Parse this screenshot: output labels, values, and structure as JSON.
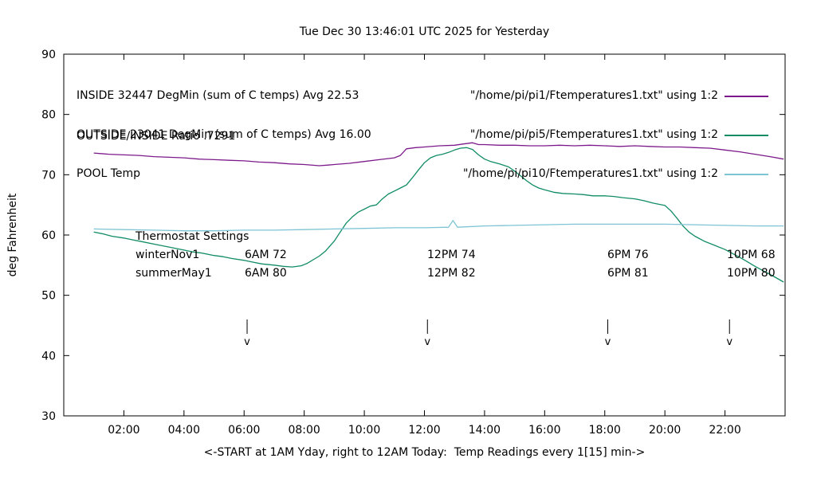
{
  "title": "Tue Dec 30 13:46:01 UTC 2025 for Yesterday",
  "axes": {
    "ylabel": "deg Fahrenheit",
    "xlabel": "<-START at 1AM Yday, right to 12AM Today:  Temp Readings every 1[15] min->",
    "y_ticks": [
      30,
      40,
      50,
      60,
      70,
      80,
      90
    ],
    "x_ticks": [
      {
        "value": 2,
        "label": "02:00"
      },
      {
        "value": 4,
        "label": "04:00"
      },
      {
        "value": 6,
        "label": "06:00"
      },
      {
        "value": 8,
        "label": "08:00"
      },
      {
        "value": 10,
        "label": "10:00"
      },
      {
        "value": 12,
        "label": "12:00"
      },
      {
        "value": 14,
        "label": "14:00"
      },
      {
        "value": 16,
        "label": "16:00"
      },
      {
        "value": 18,
        "label": "18:00"
      },
      {
        "value": 20,
        "label": "20:00"
      },
      {
        "value": 22,
        "label": "22:00"
      }
    ]
  },
  "legend": {
    "rows": [
      {
        "desc": "INSIDE 32447 DegMin (sum of C temps) Avg 22.53",
        "file": "\"/home/pi/pi1/Ftemperatures1.txt\" using 1:2"
      },
      {
        "desc": "OUTSIDE 23041 DegMin (sum of C temps) Avg 16.00",
        "file": "\"/home/pi/pi5/Ftemperatures1.txt\" using 1:2"
      },
      {
        "desc": "POOL Temp",
        "file": "\"/home/pi/pi10/Ftemperatures1.txt\" using 1:2"
      }
    ]
  },
  "annotations": {
    "ratio": "OUTSIDE/INSIDE Ratio .7291",
    "thermostat": {
      "title": "Thermostat Settings",
      "rows": [
        {
          "label": "winterNov1",
          "entries": [
            "6AM 72",
            "12PM 74",
            "6PM 76",
            "10PM 68"
          ]
        },
        {
          "label": "summerMay1",
          "entries": [
            "6AM 80",
            "12PM 82",
            "6PM 81",
            "10PM 80"
          ]
        }
      ]
    },
    "arrow_hours": [
      6.1,
      12.1,
      18.1,
      22.15
    ]
  },
  "chart_data": {
    "type": "line",
    "title": "Tue Dec 30 13:46:01 UTC 2025 for Yesterday",
    "xlabel": "<-START at 1AM Yday, right to 12AM Today:  Temp Readings every 1[15] min->",
    "ylabel": "deg Fahrenheit",
    "x_range": [
      0,
      24
    ],
    "y_range": [
      30,
      90
    ],
    "grid": false,
    "legend_position": "top-inside",
    "series": [
      {
        "name": "INSIDE",
        "color": "#7d1a8b",
        "points": [
          [
            1,
            73.6
          ],
          [
            1.5,
            73.4
          ],
          [
            2,
            73.3
          ],
          [
            2.5,
            73.2
          ],
          [
            3,
            73.0
          ],
          [
            3.5,
            72.9
          ],
          [
            4,
            72.8
          ],
          [
            4.5,
            72.6
          ],
          [
            5,
            72.5
          ],
          [
            5.5,
            72.4
          ],
          [
            6,
            72.3
          ],
          [
            6.5,
            72.1
          ],
          [
            7,
            72.0
          ],
          [
            7.5,
            71.8
          ],
          [
            8,
            71.7
          ],
          [
            8.5,
            71.5
          ],
          [
            8.8,
            71.6
          ],
          [
            9,
            71.7
          ],
          [
            9.5,
            71.9
          ],
          [
            10,
            72.2
          ],
          [
            10.5,
            72.5
          ],
          [
            11,
            72.8
          ],
          [
            11.2,
            73.2
          ],
          [
            11.4,
            74.3
          ],
          [
            11.7,
            74.5
          ],
          [
            12,
            74.6
          ],
          [
            12.5,
            74.8
          ],
          [
            13,
            74.9
          ],
          [
            13.3,
            75.1
          ],
          [
            13.6,
            75.3
          ],
          [
            13.8,
            75.0
          ],
          [
            14,
            75.0
          ],
          [
            14.5,
            74.9
          ],
          [
            15,
            74.9
          ],
          [
            15.5,
            74.8
          ],
          [
            16,
            74.8
          ],
          [
            16.5,
            74.9
          ],
          [
            17,
            74.8
          ],
          [
            17.5,
            74.9
          ],
          [
            18,
            74.8
          ],
          [
            18.5,
            74.7
          ],
          [
            19,
            74.8
          ],
          [
            19.5,
            74.7
          ],
          [
            20,
            74.6
          ],
          [
            20.5,
            74.6
          ],
          [
            21,
            74.5
          ],
          [
            21.5,
            74.4
          ],
          [
            22,
            74.1
          ],
          [
            22.5,
            73.8
          ],
          [
            23,
            73.4
          ],
          [
            23.5,
            73.0
          ],
          [
            23.95,
            72.6
          ]
        ]
      },
      {
        "name": "OUTSIDE",
        "color": "#118c66",
        "points": [
          [
            1,
            60.5
          ],
          [
            1.3,
            60.2
          ],
          [
            1.6,
            59.8
          ],
          [
            2,
            59.5
          ],
          [
            2.3,
            59.2
          ],
          [
            2.6,
            58.9
          ],
          [
            3,
            58.5
          ],
          [
            3.3,
            58.2
          ],
          [
            3.6,
            57.9
          ],
          [
            4,
            57.5
          ],
          [
            4.3,
            57.2
          ],
          [
            4.6,
            57.0
          ],
          [
            5,
            56.6
          ],
          [
            5.3,
            56.4
          ],
          [
            5.6,
            56.1
          ],
          [
            6,
            55.8
          ],
          [
            6.3,
            55.5
          ],
          [
            6.6,
            55.2
          ],
          [
            7,
            55.0
          ],
          [
            7.3,
            54.8
          ],
          [
            7.6,
            54.7
          ],
          [
            7.9,
            54.9
          ],
          [
            8.1,
            55.3
          ],
          [
            8.3,
            55.9
          ],
          [
            8.5,
            56.5
          ],
          [
            8.7,
            57.3
          ],
          [
            9,
            59.0
          ],
          [
            9.2,
            60.5
          ],
          [
            9.4,
            62.0
          ],
          [
            9.6,
            63.0
          ],
          [
            9.8,
            63.8
          ],
          [
            10,
            64.3
          ],
          [
            10.2,
            64.8
          ],
          [
            10.4,
            65.0
          ],
          [
            10.6,
            66.0
          ],
          [
            10.8,
            66.8
          ],
          [
            11,
            67.3
          ],
          [
            11.2,
            67.8
          ],
          [
            11.4,
            68.3
          ],
          [
            11.6,
            69.5
          ],
          [
            11.8,
            70.8
          ],
          [
            12,
            72.0
          ],
          [
            12.2,
            72.8
          ],
          [
            12.4,
            73.2
          ],
          [
            12.6,
            73.4
          ],
          [
            12.8,
            73.7
          ],
          [
            13,
            74.1
          ],
          [
            13.2,
            74.4
          ],
          [
            13.4,
            74.5
          ],
          [
            13.6,
            74.2
          ],
          [
            13.8,
            73.3
          ],
          [
            14,
            72.6
          ],
          [
            14.2,
            72.2
          ],
          [
            14.5,
            71.8
          ],
          [
            14.8,
            71.3
          ],
          [
            15,
            70.6
          ],
          [
            15.2,
            69.8
          ],
          [
            15.4,
            69.0
          ],
          [
            15.6,
            68.3
          ],
          [
            15.8,
            67.8
          ],
          [
            16,
            67.5
          ],
          [
            16.3,
            67.1
          ],
          [
            16.6,
            66.9
          ],
          [
            17,
            66.8
          ],
          [
            17.3,
            66.7
          ],
          [
            17.6,
            66.5
          ],
          [
            18,
            66.5
          ],
          [
            18.3,
            66.4
          ],
          [
            18.6,
            66.2
          ],
          [
            19,
            66.0
          ],
          [
            19.3,
            65.7
          ],
          [
            19.6,
            65.3
          ],
          [
            19.8,
            65.1
          ],
          [
            20,
            64.9
          ],
          [
            20.2,
            64.0
          ],
          [
            20.4,
            62.8
          ],
          [
            20.6,
            61.5
          ],
          [
            20.8,
            60.5
          ],
          [
            21,
            59.8
          ],
          [
            21.3,
            59.0
          ],
          [
            21.6,
            58.4
          ],
          [
            22,
            57.6
          ],
          [
            22.3,
            56.8
          ],
          [
            22.6,
            56.0
          ],
          [
            23,
            54.8
          ],
          [
            23.3,
            54.0
          ],
          [
            23.6,
            53.2
          ],
          [
            23.95,
            52.2
          ]
        ]
      },
      {
        "name": "POOL",
        "color": "#7ec4d4",
        "points": [
          [
            1,
            61.0
          ],
          [
            2,
            60.9
          ],
          [
            3,
            60.8
          ],
          [
            4,
            60.7
          ],
          [
            5,
            60.7
          ],
          [
            6,
            60.8
          ],
          [
            7,
            60.8
          ],
          [
            8,
            60.9
          ],
          [
            9,
            61.0
          ],
          [
            10,
            61.1
          ],
          [
            11,
            61.2
          ],
          [
            12,
            61.2
          ],
          [
            12.8,
            61.3
          ],
          [
            12.95,
            62.4
          ],
          [
            13.1,
            61.3
          ],
          [
            14,
            61.5
          ],
          [
            15,
            61.6
          ],
          [
            16,
            61.7
          ],
          [
            17,
            61.8
          ],
          [
            18,
            61.8
          ],
          [
            19,
            61.8
          ],
          [
            20,
            61.8
          ],
          [
            21,
            61.7
          ],
          [
            22,
            61.6
          ],
          [
            23,
            61.5
          ],
          [
            23.95,
            61.5
          ]
        ]
      }
    ]
  }
}
